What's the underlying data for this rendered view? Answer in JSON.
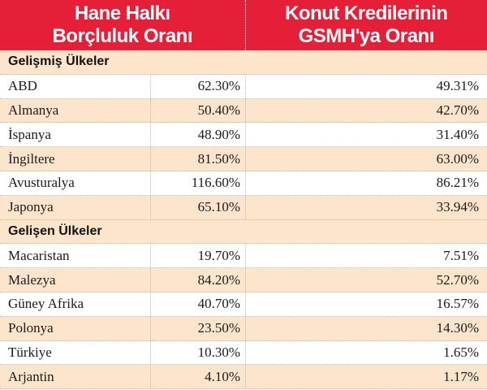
{
  "chart_data": {
    "type": "table",
    "columns": [
      "Hane Halkı\nBorçluluk Oranı",
      "Konut Kredilerinin\nGSMH'ya Oranı"
    ],
    "groups": [
      {
        "name": "Gelişmiş Ülkeler",
        "rows": [
          {
            "country": "ABD",
            "v1": "62.30%",
            "v2": "49.31%"
          },
          {
            "country": "Almanya",
            "v1": "50.40%",
            "v2": "42.70%"
          },
          {
            "country": "İspanya",
            "v1": "48.90%",
            "v2": "31.40%"
          },
          {
            "country": "İngiltere",
            "v1": "81.50%",
            "v2": "63.00%"
          },
          {
            "country": "Avusturalya",
            "v1": "116.60%",
            "v2": "86.21%"
          },
          {
            "country": "Japonya",
            "v1": "65.10%",
            "v2": "33.94%"
          }
        ]
      },
      {
        "name": "Gelişen Ülkeler",
        "rows": [
          {
            "country": "Macaristan",
            "v1": "19.70%",
            "v2": "7.51%"
          },
          {
            "country": "Malezya",
            "v1": "84.20%",
            "v2": "52.70%"
          },
          {
            "country": "Güney Afrika",
            "v1": "40.70%",
            "v2": "16.57%"
          },
          {
            "country": "Polonya",
            "v1": "23.50%",
            "v2": "14.30%"
          },
          {
            "country": "Türkiye",
            "v1": "10.30%",
            "v2": "1.65%"
          },
          {
            "country": "Arjantin",
            "v1": "4.10%",
            "v2": "1.17%"
          }
        ]
      }
    ]
  },
  "colors": {
    "header": "#e41f37",
    "stripe": "#fde5cb",
    "header_text": "#ffffff"
  }
}
